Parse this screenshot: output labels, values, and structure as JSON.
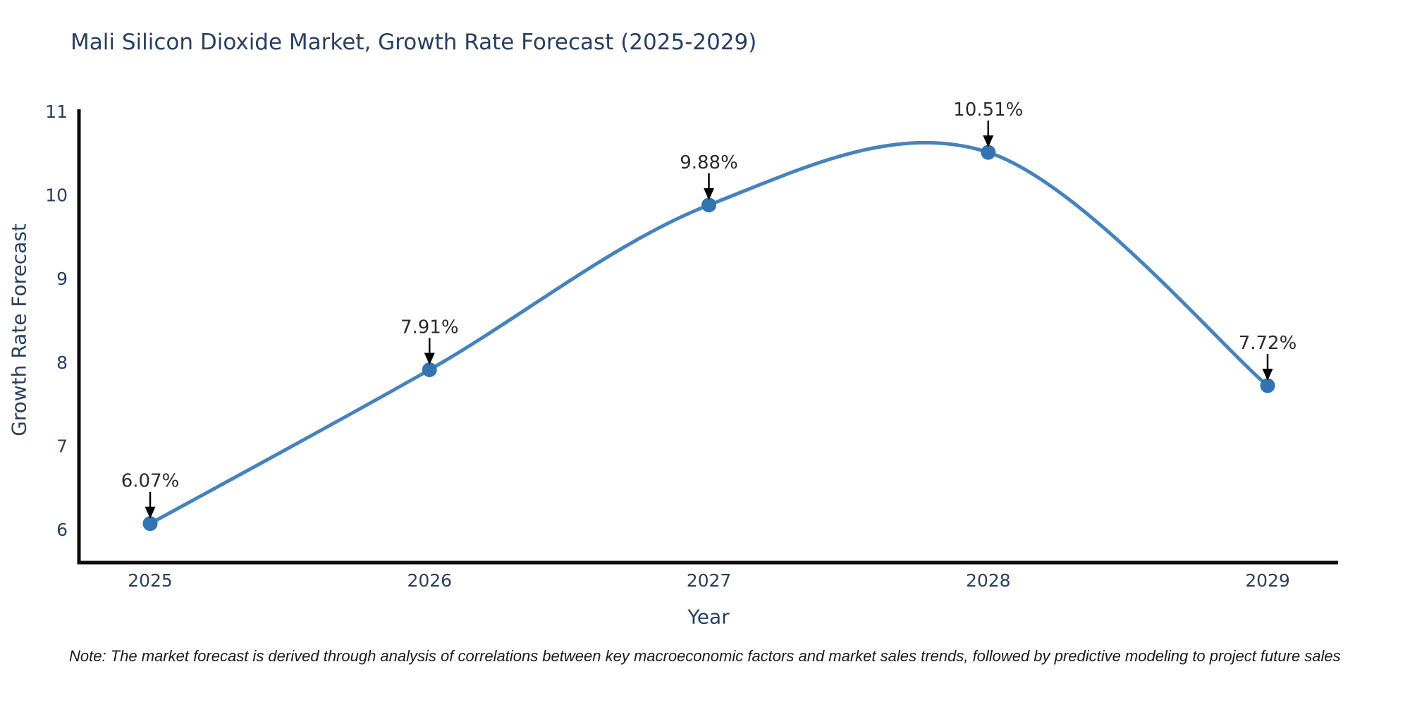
{
  "title": "Mali Silicon Dioxide Market, Growth Rate Forecast (2025-2029)",
  "note": "Note: The market forecast is derived through analysis of correlations between key macroeconomic factors and market sales trends, followed by predictive modeling to project future sales",
  "chart_data": {
    "type": "line",
    "line_shape": "spline",
    "title": "Mali Silicon Dioxide Market, Growth Rate Forecast (2025-2029)",
    "xlabel": "Year",
    "ylabel": "Growth Rate Forecast",
    "categories": [
      "2025",
      "2026",
      "2027",
      "2028",
      "2029"
    ],
    "values": [
      6.07,
      7.91,
      9.88,
      10.51,
      7.72
    ],
    "point_labels": [
      "6.07%",
      "7.91%",
      "9.88%",
      "10.51%",
      "7.72%"
    ],
    "ytick_labels": [
      "6",
      "7",
      "8",
      "9",
      "10",
      "11"
    ],
    "yticks": [
      6,
      7,
      8,
      9,
      10,
      11
    ],
    "ylim": [
      5.6,
      11
    ],
    "grid": false,
    "legend": false,
    "markers": true,
    "annotations_have_arrows": true,
    "colors": {
      "line": "#4583BD",
      "marker": "#3273B1",
      "axis": "#0b0b0b",
      "title_text": "#2a3f5f",
      "tick_text": "#2a3f5f",
      "axis_label_text": "#2a3f5f",
      "annotation_text": "#2b2b2b",
      "arrow": "#000000",
      "background": "#ffffff"
    }
  }
}
